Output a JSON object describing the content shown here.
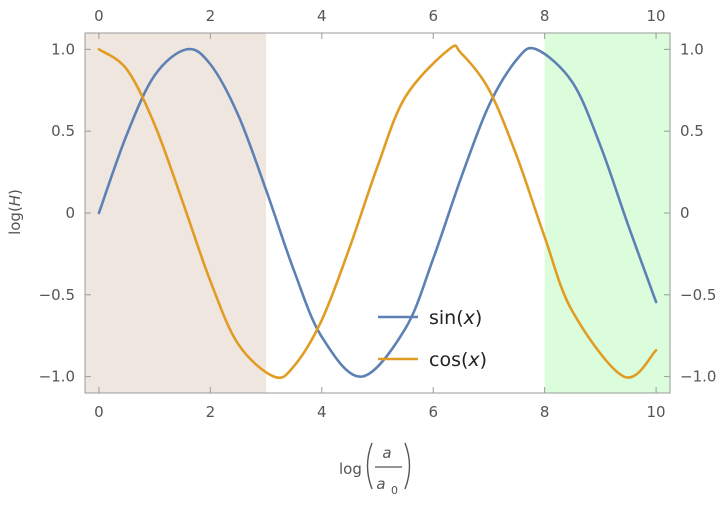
{
  "chart_data": {
    "type": "line",
    "title": "",
    "xlabel": {
      "prefix": "log",
      "numerator": "a",
      "denominator_base": "a",
      "denominator_sub": "0"
    },
    "ylabel": {
      "prefix": "log(",
      "variable": "H",
      "suffix": ")"
    },
    "xlim": [
      -0.25,
      10.25
    ],
    "ylim": [
      -1.1,
      1.1
    ],
    "x_ticks": [
      0,
      2,
      4,
      6,
      8,
      10
    ],
    "x_tick_labels": [
      "0",
      "2",
      "4",
      "6",
      "8",
      "10"
    ],
    "y_ticks": [
      1.0,
      0.5,
      0,
      -0.5,
      -1.0
    ],
    "y_tick_labels": [
      "1.0",
      "0.5",
      "0",
      "−0.5",
      "−1.0"
    ],
    "shaded_regions": [
      {
        "x_from": -0.25,
        "x_to": 3.0,
        "color": "#f0e6e0"
      },
      {
        "x_from": 8.0,
        "x_to": 10.25,
        "color": "#dcfddc"
      }
    ],
    "legend": {
      "placement": "lower-center"
    },
    "series": [
      {
        "name": "sin(x)",
        "name_prefix": "sin(",
        "name_var": "x",
        "name_suffix": ")",
        "color": "#5e81b5",
        "x": [
          0.0,
          0.5,
          1.0,
          1.5708,
          2.0,
          2.5,
          3.0,
          3.5,
          4.0,
          4.7124,
          5.5,
          6.0,
          6.5,
          7.0,
          7.5,
          7.854,
          8.5,
          9.0,
          9.5,
          10.0
        ],
        "y": [
          0.0,
          0.479,
          0.841,
          1.0,
          0.909,
          0.598,
          0.141,
          -0.351,
          -0.757,
          -1.0,
          -0.706,
          -0.279,
          0.215,
          0.657,
          0.938,
          1.0,
          0.798,
          0.412,
          -0.075,
          -0.544
        ]
      },
      {
        "name": "cos(x)",
        "name_prefix": "cos(",
        "name_var": "x",
        "name_suffix": ")",
        "color": "#e19c24",
        "x": [
          0.0,
          0.5,
          1.0,
          1.5,
          2.0,
          2.5,
          3.1416,
          3.5,
          4.0,
          4.5,
          5.0,
          5.5,
          6.2832,
          6.5,
          7.0,
          7.5,
          8.0,
          8.5,
          9.4248,
          10.0
        ],
        "y": [
          1.0,
          0.878,
          0.54,
          0.071,
          -0.416,
          -0.801,
          -1.0,
          -0.936,
          -0.654,
          -0.211,
          0.284,
          0.709,
          1.0,
          0.977,
          0.754,
          0.347,
          -0.146,
          -0.602,
          -1.0,
          -0.839
        ]
      }
    ]
  }
}
